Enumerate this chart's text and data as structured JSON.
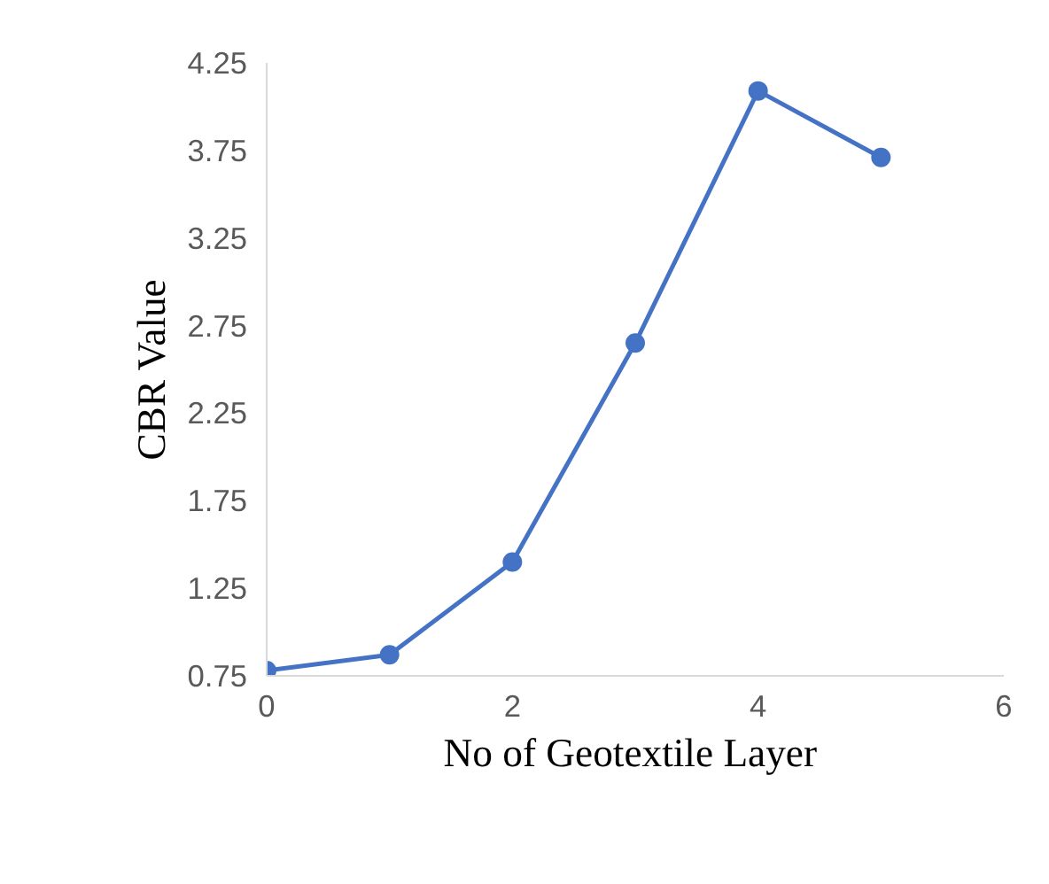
{
  "chart_data": {
    "type": "line",
    "xlabel": "No of Geotextile  Layer",
    "ylabel": "CBR Value",
    "x": [
      0,
      1,
      2,
      3,
      4,
      5
    ],
    "series": [
      {
        "color": "#4472c4",
        "values": [
          0.78,
          0.87,
          1.4,
          2.65,
          4.09,
          3.71
        ]
      }
    ],
    "xlim": [
      0,
      6
    ],
    "xticks": [
      0,
      2,
      4,
      6
    ],
    "ylim": [
      0.75,
      4.25
    ],
    "yticks": [
      0.75,
      1.25,
      1.75,
      2.25,
      2.75,
      3.25,
      3.75,
      4.25
    ],
    "grid": false,
    "marker": "circle",
    "line_style": "solid"
  }
}
